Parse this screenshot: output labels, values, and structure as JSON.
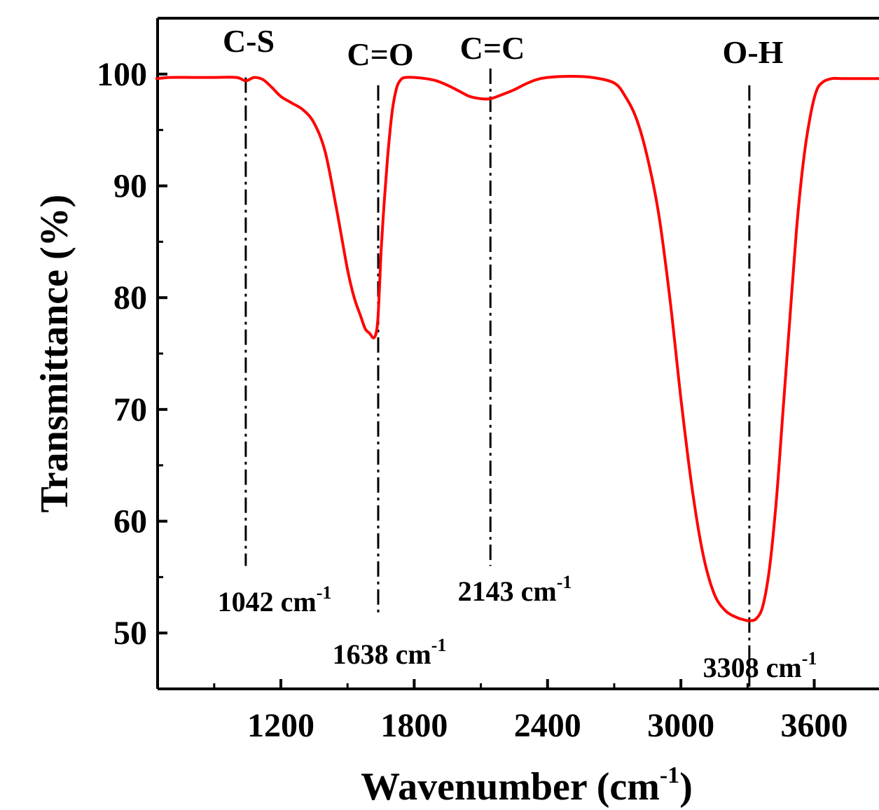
{
  "chart_data": {
    "type": "line",
    "title": "",
    "xlabel": "Wavenumber (cm",
    "xlabel_sup": "-1",
    "xlabel_close": ")",
    "ylabel": "Transmittance (%)",
    "xlim": [
      500,
      4000
    ],
    "ylim": [
      45,
      105
    ],
    "x_ticks": [
      1200,
      1800,
      2400,
      3000,
      3600
    ],
    "y_ticks": [
      50,
      60,
      70,
      80,
      90,
      100
    ],
    "grid": false,
    "legend": "none",
    "series": [
      {
        "color": "#ff0000",
        "x": [
          500,
          600,
          700,
          800,
          900,
          1000,
          1042,
          1080,
          1120,
          1160,
          1200,
          1250,
          1300,
          1350,
          1400,
          1450,
          1500,
          1530,
          1560,
          1580,
          1600,
          1615,
          1625,
          1632,
          1638,
          1644,
          1652,
          1665,
          1680,
          1700,
          1720,
          1740,
          1760,
          1800,
          1850,
          1900,
          1950,
          2000,
          2050,
          2100,
          2143,
          2200,
          2250,
          2300,
          2350,
          2400,
          2500,
          2600,
          2700,
          2750,
          2800,
          2850,
          2900,
          2950,
          3000,
          3050,
          3100,
          3150,
          3200,
          3250,
          3280,
          3308,
          3340,
          3370,
          3400,
          3430,
          3460,
          3490,
          3520,
          3550,
          3580,
          3610,
          3640,
          3680,
          3720,
          3800,
          3900,
          4000
        ],
        "y": [
          99.6,
          99.6,
          99.7,
          99.7,
          99.7,
          99.7,
          99.4,
          99.7,
          99.5,
          98.8,
          98.0,
          97.4,
          96.8,
          95.6,
          93.0,
          88.0,
          82.5,
          80.0,
          78.3,
          77.2,
          76.8,
          76.4,
          76.6,
          77.2,
          78.5,
          81.0,
          84.5,
          88.5,
          92.5,
          96.5,
          98.7,
          99.5,
          99.7,
          99.7,
          99.6,
          99.4,
          99.0,
          98.5,
          98.0,
          97.8,
          97.8,
          98.2,
          98.6,
          99.1,
          99.5,
          99.7,
          99.8,
          99.7,
          99.2,
          98.0,
          96.0,
          92.5,
          87.5,
          80.0,
          71.0,
          63.0,
          57.0,
          53.5,
          52.0,
          51.4,
          51.2,
          51.1,
          51.3,
          52.5,
          56.0,
          62.0,
          70.0,
          78.0,
          86.0,
          92.0,
          96.0,
          98.5,
          99.3,
          99.6,
          99.6,
          99.6,
          99.6,
          99.6
        ]
      }
    ],
    "bands": [
      {
        "label": "C-S",
        "wavenumber": 1042,
        "value_label": "1042 cm",
        "sup": "-1",
        "line_from": 56,
        "line_to": 99.7
      },
      {
        "label": "C=O",
        "wavenumber": 1638,
        "value_label": "1638 cm",
        "sup": "-1",
        "line_from": 51.5,
        "line_to": 99
      },
      {
        "label": "C=C",
        "wavenumber": 2143,
        "value_label": "2143 cm",
        "sup": "-1",
        "line_from": 56,
        "line_to": 100.5
      },
      {
        "label": "O-H",
        "wavenumber": 3308,
        "value_label": "3308 cm",
        "sup": "-1",
        "line_from": 45.2,
        "line_to": 99
      }
    ]
  }
}
